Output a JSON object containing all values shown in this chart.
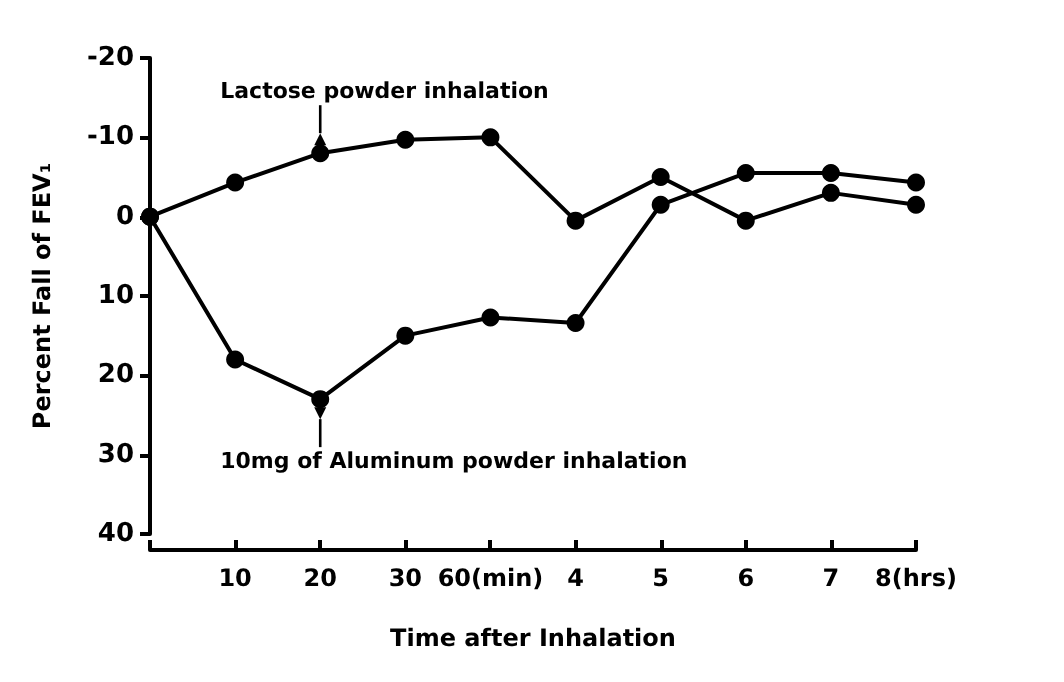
{
  "chart_data": {
    "type": "line",
    "xlabel": "Time after Inhalation",
    "ylabel": "Percent Fall of FEV₁",
    "categories": [
      null,
      "10",
      "20",
      "30",
      "60(min)",
      "4",
      "5",
      "6",
      "7",
      "8(hrs)"
    ],
    "series": [
      {
        "color": "#000000",
        "values": [
          0,
          -4.3,
          -8,
          -9.7,
          -10,
          0.5,
          -5,
          0.5,
          -3,
          -1.5
        ]
      },
      {
        "color": "#000000",
        "values": [
          0,
          18,
          23,
          15,
          12.7,
          13.4,
          -1.5,
          -5.5,
          -5.5,
          -4.3
        ]
      }
    ],
    "annotations": [
      {
        "text": "Lactose powder inhalation",
        "x": "20",
        "y": -8
      },
      {
        "text": "10mg of Aluminum powder inhalation",
        "x": "20",
        "y": 23
      }
    ],
    "ylim": [
      40,
      -20
    ],
    "yticks": [
      -20,
      -10,
      0,
      10,
      20,
      30,
      40
    ],
    "grid": false,
    "marker": "circle",
    "line_style": "solid"
  }
}
